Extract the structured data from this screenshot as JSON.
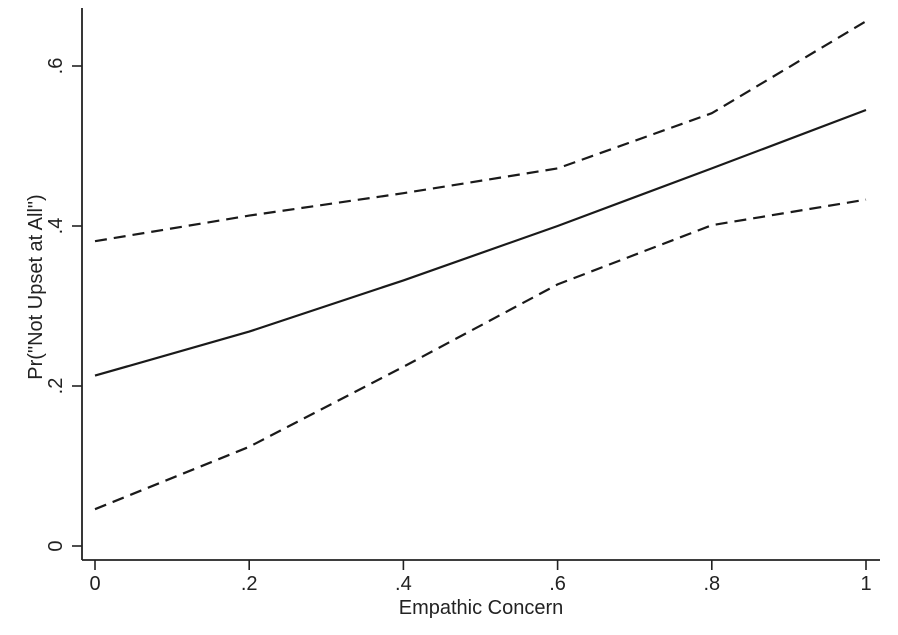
{
  "chart_data": {
    "type": "line",
    "title": "",
    "xlabel": "Empathic Concern",
    "ylabel": "Pr(\"Not Upset at All\")",
    "xlim": [
      0,
      1
    ],
    "ylim": [
      0,
      0.67
    ],
    "x_ticks": [
      {
        "value": 0,
        "label": "0"
      },
      {
        "value": 0.2,
        "label": ".2"
      },
      {
        "value": 0.4,
        "label": ".4"
      },
      {
        "value": 0.6,
        "label": ".6"
      },
      {
        "value": 0.8,
        "label": ".8"
      },
      {
        "value": 1,
        "label": "1"
      }
    ],
    "y_ticks": [
      {
        "value": 0,
        "label": "0"
      },
      {
        "value": 0.2,
        "label": ".2"
      },
      {
        "value": 0.4,
        "label": ".4"
      },
      {
        "value": 0.6,
        "label": ".6"
      }
    ],
    "grid": false,
    "legend": "none",
    "series": [
      {
        "style": "solid",
        "color": "#1a1a1a",
        "x": [
          0,
          0.2,
          0.4,
          0.6,
          0.8,
          1
        ],
        "y": [
          0.213,
          0.268,
          0.332,
          0.4,
          0.472,
          0.545
        ]
      },
      {
        "style": "dashed",
        "color": "#1a1a1a",
        "x": [
          0,
          0.2,
          0.4,
          0.6,
          0.8,
          1
        ],
        "y": [
          0.381,
          0.413,
          0.441,
          0.472,
          0.541,
          0.656
        ]
      },
      {
        "style": "dashed",
        "color": "#1a1a1a",
        "x": [
          0,
          0.2,
          0.4,
          0.6,
          0.8,
          1
        ],
        "y": [
          0.046,
          0.124,
          0.224,
          0.327,
          0.401,
          0.433
        ]
      }
    ]
  }
}
